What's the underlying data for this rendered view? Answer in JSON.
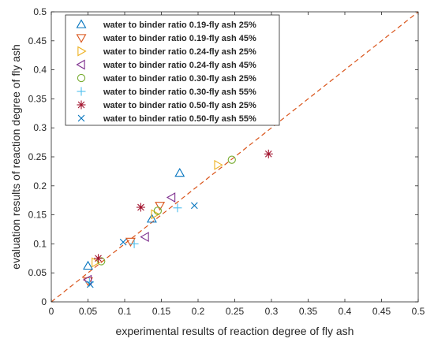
{
  "chart_data": {
    "type": "scatter",
    "title": "",
    "xlabel": "experimental results of reaction degree of fly ash",
    "ylabel": "evaluation results of reaction degree of fly ash",
    "xlim": [
      0,
      0.5
    ],
    "ylim": [
      0,
      0.5
    ],
    "xticks": [
      "0",
      "0.05",
      "0.1",
      "0.15",
      "0.2",
      "0.25",
      "0.3",
      "0.35",
      "0.4",
      "0.45",
      "0.5"
    ],
    "yticks": [
      "0",
      "0.05",
      "0.1",
      "0.15",
      "0.2",
      "0.25",
      "0.3",
      "0.35",
      "0.4",
      "0.45",
      "0.5"
    ],
    "grid": false,
    "legend_position": "top-left",
    "reference_line": {
      "type": "y=x",
      "style": "dashed",
      "color": "#D95319"
    },
    "series": [
      {
        "name": "water to binder ratio 0.19-fly ash 25%",
        "marker": "triangle-up",
        "color": "#0072BD",
        "points": [
          [
            0.05,
            0.062
          ],
          [
            0.137,
            0.143
          ],
          [
            0.175,
            0.222
          ]
        ]
      },
      {
        "name": "water to binder ratio 0.19-fly ash 45%",
        "marker": "triangle-down",
        "color": "#D95319",
        "points": [
          [
            0.05,
            0.036
          ],
          [
            0.108,
            0.104
          ],
          [
            0.148,
            0.166
          ]
        ]
      },
      {
        "name": "water to binder ratio 0.24-fly ash 25%",
        "marker": "triangle-right",
        "color": "#EDB120",
        "points": [
          [
            0.06,
            0.068
          ],
          [
            0.141,
            0.151
          ],
          [
            0.227,
            0.236
          ]
        ]
      },
      {
        "name": "water to binder ratio 0.24-fly ash 45%",
        "marker": "triangle-left",
        "color": "#7E2F8E",
        "points": [
          [
            0.05,
            0.038
          ],
          [
            0.128,
            0.112
          ],
          [
            0.164,
            0.18
          ]
        ]
      },
      {
        "name": "water to binder ratio 0.30-fly ash 25%",
        "marker": "circle",
        "color": "#77AC30",
        "points": [
          [
            0.068,
            0.07
          ],
          [
            0.145,
            0.157
          ],
          [
            0.246,
            0.245
          ]
        ]
      },
      {
        "name": "water to binder ratio 0.30-fly ash 55%",
        "marker": "plus",
        "color": "#4DBEEE",
        "points": [
          [
            0.052,
            0.034
          ],
          [
            0.113,
            0.1
          ],
          [
            0.172,
            0.162
          ]
        ]
      },
      {
        "name": "water to binder ratio 0.50-fly ash 25%",
        "marker": "asterisk",
        "color": "#A2142F",
        "points": [
          [
            0.064,
            0.075
          ],
          [
            0.122,
            0.163
          ],
          [
            0.296,
            0.255
          ]
        ]
      },
      {
        "name": "water to binder ratio 0.50-fly ash 55%",
        "marker": "x",
        "color": "#0072BD",
        "points": [
          [
            0.053,
            0.03
          ],
          [
            0.098,
            0.103
          ],
          [
            0.195,
            0.166
          ]
        ]
      }
    ]
  }
}
